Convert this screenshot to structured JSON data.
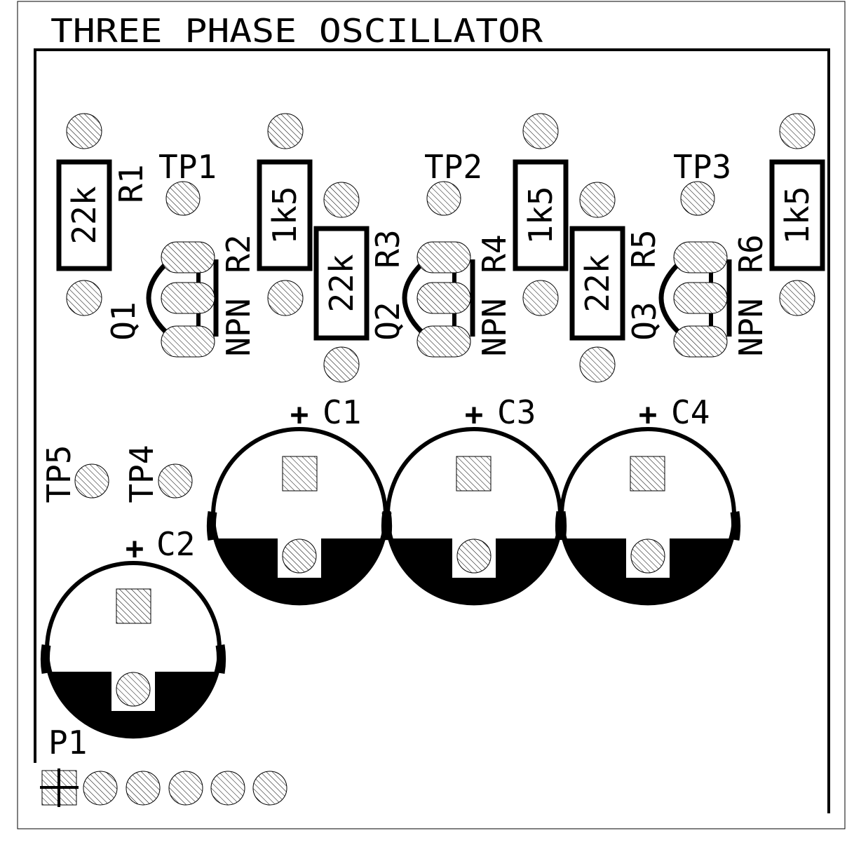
{
  "title": "THREE PHASE OSCILLATOR",
  "resistors": [
    {
      "ref": "R1",
      "value": "22k"
    },
    {
      "ref": "R2",
      "value": "1k5"
    },
    {
      "ref": "R3",
      "value": "22k"
    },
    {
      "ref": "R4",
      "value": "1k5"
    },
    {
      "ref": "R5",
      "value": "22k"
    },
    {
      "ref": "R6",
      "value": "1k5"
    }
  ],
  "transistors": [
    {
      "ref": "Q1",
      "type": "NPN"
    },
    {
      "ref": "Q2",
      "type": "NPN"
    },
    {
      "ref": "Q3",
      "type": "NPN"
    }
  ],
  "test_points": [
    "TP1",
    "TP2",
    "TP3",
    "TP4",
    "TP5"
  ],
  "capacitors": [
    {
      "ref": "C1",
      "polarity": "+"
    },
    {
      "ref": "C2",
      "polarity": "+"
    },
    {
      "ref": "C3",
      "polarity": "+"
    },
    {
      "ref": "C4",
      "polarity": "+"
    }
  ],
  "connector": {
    "ref": "P1",
    "pins": 6
  },
  "colors": {
    "silkscreen": "#000000",
    "background": "#ffffff"
  }
}
